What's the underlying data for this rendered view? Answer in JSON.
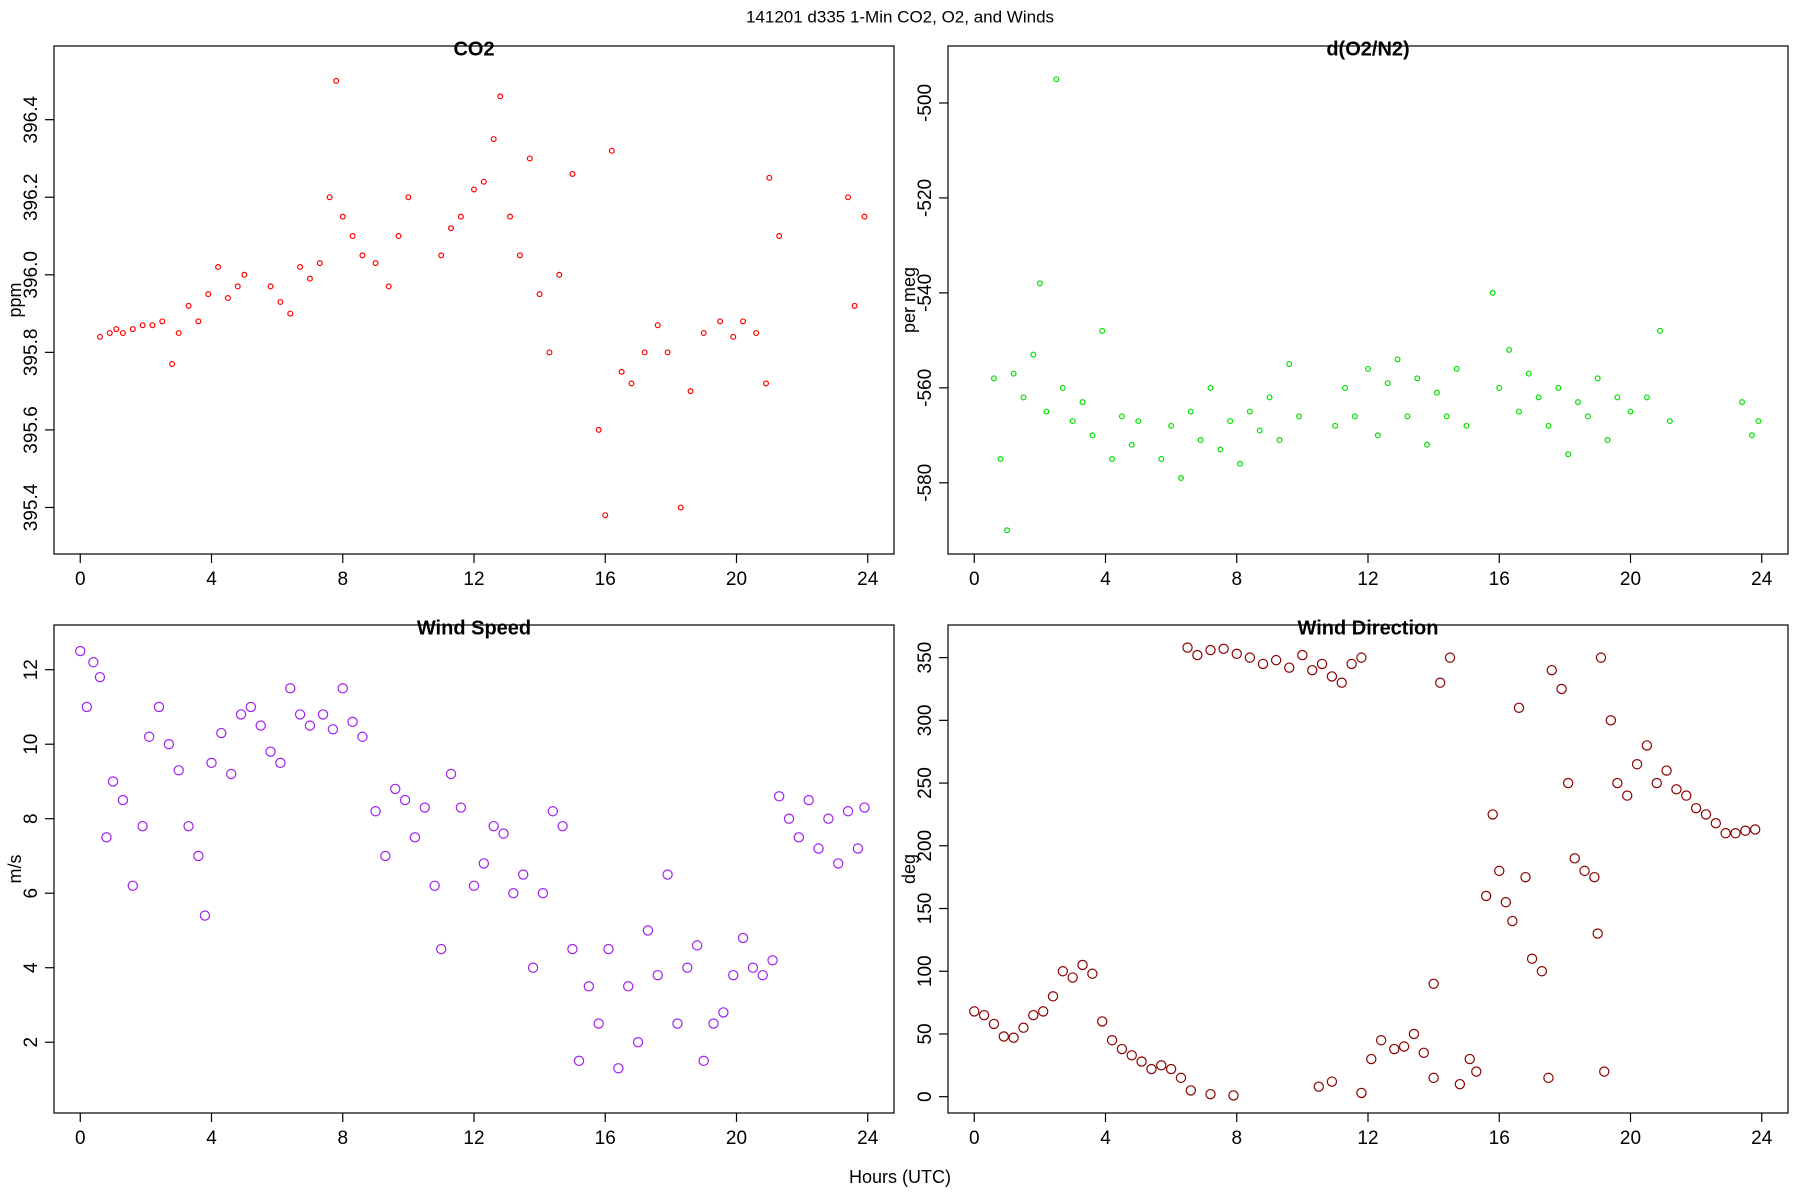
{
  "title": "141201   d335   1-Min CO2, O2, and Winds",
  "xlabel": "Hours (UTC)",
  "chart_data": [
    {
      "type": "scatter",
      "title": "CO2",
      "ylabel": "ppm",
      "color": "#ff0000",
      "xlim": [
        -0.8,
        24.8
      ],
      "xticks": [
        0,
        4,
        8,
        12,
        16,
        20,
        24
      ],
      "ylim": [
        395.28,
        396.59
      ],
      "yticks": [
        395.4,
        395.6,
        395.8,
        {
          "value": 396,
          "label": "396.0"
        },
        396.2,
        396.4
      ],
      "x": [
        0.6,
        0.9,
        1.1,
        1.3,
        1.6,
        1.9,
        2.2,
        2.5,
        2.8,
        3.0,
        3.3,
        3.6,
        3.9,
        4.2,
        4.5,
        4.8,
        5.0,
        5.8,
        6.1,
        6.4,
        6.7,
        7.0,
        7.3,
        7.6,
        7.8,
        8.0,
        8.3,
        8.6,
        9.0,
        9.4,
        9.7,
        10.0,
        11.0,
        11.3,
        11.6,
        12.0,
        12.3,
        12.6,
        12.8,
        13.1,
        13.4,
        13.7,
        14.0,
        14.3,
        14.6,
        15.0,
        15.8,
        16.0,
        16.2,
        16.5,
        16.8,
        17.2,
        17.6,
        17.9,
        18.3,
        18.6,
        19.0,
        19.5,
        19.9,
        20.2,
        20.6,
        20.9,
        21.0,
        21.3,
        23.4,
        23.6,
        23.9
      ],
      "values": [
        395.84,
        395.85,
        395.86,
        395.85,
        395.86,
        395.87,
        395.87,
        395.88,
        395.77,
        395.85,
        395.92,
        395.88,
        395.95,
        396.02,
        395.94,
        395.97,
        396.0,
        395.97,
        395.93,
        395.9,
        396.02,
        395.99,
        396.03,
        396.2,
        396.5,
        396.15,
        396.1,
        396.05,
        396.03,
        395.97,
        396.1,
        396.2,
        396.05,
        396.12,
        396.15,
        396.22,
        396.24,
        396.35,
        396.46,
        396.15,
        396.05,
        396.3,
        395.95,
        395.8,
        396.0,
        396.26,
        395.6,
        395.38,
        396.32,
        395.75,
        395.72,
        395.8,
        395.87,
        395.8,
        395.4,
        395.7,
        395.85,
        395.88,
        395.84,
        395.88,
        395.85,
        395.72,
        396.25,
        396.1,
        396.2,
        395.92,
        396.15
      ]
    },
    {
      "type": "scatter",
      "title": "d(O2/N2)",
      "ylabel": "per meg",
      "color": "#00e000",
      "xlim": [
        -0.8,
        24.8
      ],
      "xticks": [
        0,
        4,
        8,
        12,
        16,
        20,
        24
      ],
      "ylim": [
        -595,
        -488
      ],
      "yticks": [
        -580,
        -560,
        -540,
        -520,
        -500
      ],
      "x": [
        0.6,
        0.8,
        1.0,
        1.2,
        1.5,
        1.8,
        2.0,
        2.2,
        2.5,
        2.7,
        3.0,
        3.3,
        3.6,
        3.9,
        4.2,
        4.5,
        4.8,
        5.0,
        5.7,
        6.0,
        6.3,
        6.6,
        6.9,
        7.2,
        7.5,
        7.8,
        8.1,
        8.4,
        8.7,
        9.0,
        9.3,
        9.6,
        9.9,
        11.0,
        11.3,
        11.6,
        12.0,
        12.3,
        12.6,
        12.9,
        13.2,
        13.5,
        13.8,
        14.1,
        14.4,
        14.7,
        15.0,
        15.8,
        16.0,
        16.3,
        16.6,
        16.9,
        17.2,
        17.5,
        17.8,
        18.1,
        18.4,
        18.7,
        19.0,
        19.3,
        19.6,
        20.0,
        20.5,
        20.9,
        21.2,
        23.4,
        23.7,
        23.9
      ],
      "values": [
        -558,
        -575,
        -590,
        -557,
        -562,
        -553,
        -538,
        -565,
        -495,
        -560,
        -567,
        -563,
        -570,
        -548,
        -575,
        -566,
        -572,
        -567,
        -575,
        -568,
        -579,
        -565,
        -571,
        -560,
        -573,
        -567,
        -576,
        -565,
        -569,
        -562,
        -571,
        -555,
        -566,
        -568,
        -560,
        -566,
        -556,
        -570,
        -559,
        -554,
        -566,
        -558,
        -572,
        -561,
        -566,
        -556,
        -568,
        -540,
        -560,
        -552,
        -565,
        -557,
        -562,
        -568,
        -560,
        -574,
        -563,
        -566,
        -558,
        -571,
        -562,
        -565,
        -562,
        -548,
        -567,
        -563,
        -570,
        -567
      ]
    },
    {
      "type": "scatter",
      "title": "Wind Speed",
      "ylabel": "m/s",
      "color": "#a020f0",
      "xlim": [
        -0.8,
        24.8
      ],
      "xticks": [
        0,
        4,
        8,
        12,
        16,
        20,
        24
      ],
      "ylim": [
        0.1,
        13.2
      ],
      "yticks": [
        2,
        4,
        6,
        8,
        10,
        12
      ],
      "x": [
        0.0,
        0.2,
        0.4,
        0.6,
        0.8,
        1.0,
        1.3,
        1.6,
        1.9,
        2.1,
        2.4,
        2.7,
        3.0,
        3.3,
        3.6,
        3.8,
        4.0,
        4.3,
        4.6,
        4.9,
        5.2,
        5.5,
        5.8,
        6.1,
        6.4,
        6.7,
        7.0,
        7.4,
        7.7,
        8.0,
        8.3,
        8.6,
        9.0,
        9.3,
        9.6,
        9.9,
        10.2,
        10.5,
        10.8,
        11.0,
        11.3,
        11.6,
        12.0,
        12.3,
        12.6,
        12.9,
        13.2,
        13.5,
        13.8,
        14.1,
        14.4,
        14.7,
        15.0,
        15.2,
        15.5,
        15.8,
        16.1,
        16.4,
        16.7,
        17.0,
        17.3,
        17.6,
        17.9,
        18.2,
        18.5,
        18.8,
        19.0,
        19.3,
        19.6,
        19.9,
        20.2,
        20.5,
        20.8,
        21.1,
        21.3,
        21.6,
        21.9,
        22.2,
        22.5,
        22.8,
        23.1,
        23.4,
        23.7,
        23.9
      ],
      "values": [
        12.5,
        11.0,
        12.2,
        11.8,
        7.5,
        9.0,
        8.5,
        6.2,
        7.8,
        10.2,
        11.0,
        10.0,
        9.3,
        7.8,
        7.0,
        5.4,
        9.5,
        10.3,
        9.2,
        10.8,
        11.0,
        10.5,
        9.8,
        9.5,
        11.5,
        10.8,
        10.5,
        10.8,
        10.4,
        11.5,
        10.6,
        10.2,
        8.2,
        7.0,
        8.8,
        8.5,
        7.5,
        8.3,
        6.2,
        4.5,
        9.2,
        8.3,
        6.2,
        6.8,
        7.8,
        7.6,
        6.0,
        6.5,
        4.0,
        6.0,
        8.2,
        7.8,
        4.5,
        1.5,
        3.5,
        2.5,
        4.5,
        1.3,
        3.5,
        2.0,
        5.0,
        3.8,
        6.5,
        2.5,
        4.0,
        4.6,
        1.5,
        2.5,
        2.8,
        3.8,
        4.8,
        4.0,
        3.8,
        4.2,
        8.6,
        8.0,
        7.5,
        8.5,
        7.2,
        8.0,
        6.8,
        8.2,
        7.2,
        8.3
      ]
    },
    {
      "type": "scatter",
      "title": "Wind Direction",
      "ylabel": "deg",
      "color": "#8b0000",
      "xlim": [
        -0.8,
        24.8
      ],
      "xticks": [
        0,
        4,
        8,
        12,
        16,
        20,
        24
      ],
      "ylim": [
        -13,
        376
      ],
      "yticks": [
        0,
        50,
        100,
        150,
        200,
        250,
        300,
        350
      ],
      "x": [
        0.0,
        0.3,
        0.6,
        0.9,
        1.2,
        1.5,
        1.8,
        2.1,
        2.4,
        2.7,
        3.0,
        3.3,
        3.6,
        3.9,
        4.2,
        4.5,
        4.8,
        5.1,
        5.4,
        5.7,
        6.0,
        6.3,
        6.6,
        7.2,
        7.9,
        6.5,
        6.8,
        7.2,
        7.6,
        8.0,
        8.4,
        8.8,
        9.2,
        9.6,
        10.0,
        10.3,
        10.6,
        10.9,
        11.2,
        11.5,
        11.8,
        10.5,
        10.9,
        11.8,
        12.1,
        12.4,
        12.8,
        13.1,
        13.4,
        13.7,
        14.0,
        14.0,
        14.2,
        14.5,
        14.8,
        15.1,
        15.3,
        15.6,
        15.8,
        16.0,
        16.2,
        16.4,
        16.6,
        16.8,
        17.0,
        17.3,
        17.5,
        17.6,
        17.9,
        18.1,
        18.3,
        18.6,
        18.9,
        19.0,
        19.1,
        19.2,
        19.4,
        19.6,
        19.9,
        20.2,
        20.5,
        20.8,
        21.1,
        21.4,
        21.7,
        22.0,
        22.3,
        22.6,
        22.9,
        23.2,
        23.5,
        23.8
      ],
      "values": [
        68,
        65,
        58,
        48,
        47,
        55,
        65,
        68,
        80,
        100,
        95,
        105,
        98,
        60,
        45,
        38,
        33,
        28,
        22,
        25,
        22,
        15,
        5,
        2,
        1,
        358,
        352,
        356,
        357,
        353,
        350,
        345,
        348,
        342,
        352,
        340,
        345,
        335,
        330,
        345,
        350,
        8,
        12,
        3,
        30,
        45,
        38,
        40,
        50,
        35,
        15,
        90,
        330,
        350,
        10,
        30,
        20,
        160,
        225,
        180,
        155,
        140,
        310,
        175,
        110,
        100,
        15,
        340,
        325,
        250,
        190,
        180,
        175,
        130,
        350,
        20,
        300,
        250,
        240,
        265,
        280,
        250,
        260,
        245,
        240,
        230,
        225,
        218,
        210,
        210,
        212,
        213
      ]
    }
  ]
}
